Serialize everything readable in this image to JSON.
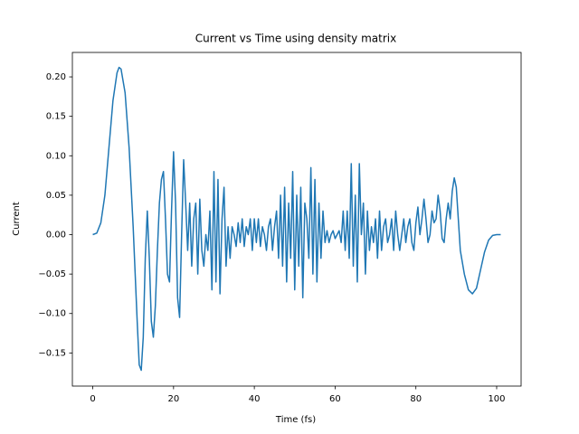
{
  "chart_data": {
    "type": "line",
    "title": "Current vs Time using density matrix",
    "x_label": "Time (fs)",
    "y_label": "Current",
    "x": [
      0,
      1,
      2,
      3,
      4,
      5,
      6,
      6.5,
      7,
      8,
      9,
      10,
      11,
      11.5,
      12,
      12.5,
      13,
      13.5,
      14,
      14.5,
      15,
      15.5,
      16,
      16.5,
      17,
      17.5,
      18,
      18.5,
      19,
      19.5,
      20,
      20.5,
      21,
      21.5,
      22,
      22.5,
      23,
      23.5,
      24,
      24.5,
      25,
      25.5,
      26,
      26.5,
      27,
      27.5,
      28,
      28.5,
      29,
      29.5,
      30,
      30.5,
      31,
      31.5,
      32,
      32.5,
      33,
      33.5,
      34,
      34.5,
      35,
      35.5,
      36,
      36.5,
      37,
      37.5,
      38,
      38.5,
      39,
      39.5,
      40,
      40.5,
      41,
      41.5,
      42,
      42.5,
      43,
      43.5,
      44,
      44.5,
      45,
      45.5,
      46,
      46.5,
      47,
      47.5,
      48,
      48.5,
      49,
      49.5,
      50,
      50.5,
      51,
      51.5,
      52,
      52.5,
      53,
      53.5,
      54,
      54.5,
      55,
      55.5,
      56,
      56.5,
      57,
      57.5,
      58,
      58.5,
      59,
      59.5,
      60,
      60.5,
      61,
      61.5,
      62,
      62.5,
      63,
      63.5,
      64,
      64.5,
      65,
      65.5,
      66,
      66.5,
      67,
      67.5,
      68,
      68.5,
      69,
      69.5,
      70,
      70.5,
      71,
      71.5,
      72,
      72.5,
      73,
      73.5,
      74,
      74.5,
      75,
      75.5,
      76,
      77,
      77.5,
      78,
      78.5,
      79,
      79.5,
      80,
      80.5,
      81,
      81.5,
      82,
      82.5,
      83,
      83.5,
      84,
      84.5,
      85,
      85.5,
      86,
      86.5,
      87,
      87.5,
      88,
      88.5,
      89,
      89.5,
      90,
      90.5,
      91,
      92,
      93,
      94,
      95,
      96,
      97,
      98,
      99,
      100,
      101
    ],
    "series": [
      {
        "name": "Current",
        "color": "#1f77b4",
        "values": [
          0,
          0.002,
          0.015,
          0.05,
          0.11,
          0.17,
          0.205,
          0.212,
          0.21,
          0.18,
          0.11,
          0.01,
          -0.11,
          -0.165,
          -0.172,
          -0.13,
          -0.03,
          0.03,
          -0.03,
          -0.11,
          -0.13,
          -0.09,
          -0.02,
          0.04,
          0.07,
          0.08,
          0.02,
          -0.05,
          -0.06,
          0.03,
          0.105,
          0.04,
          -0.08,
          -0.105,
          0.0,
          0.095,
          0.04,
          -0.02,
          0.04,
          -0.04,
          0.02,
          0.04,
          -0.05,
          0.045,
          -0.02,
          -0.04,
          0.0,
          -0.02,
          0.03,
          -0.07,
          0.08,
          -0.06,
          0.07,
          -0.075,
          0.02,
          0.06,
          -0.04,
          0.01,
          -0.03,
          0.01,
          0.0,
          -0.015,
          0.015,
          -0.01,
          0.02,
          -0.015,
          0.01,
          0.0,
          0.02,
          -0.02,
          0.02,
          -0.01,
          0.02,
          -0.015,
          0.01,
          0.0,
          -0.02,
          0.01,
          0.02,
          -0.02,
          0.01,
          0.03,
          -0.03,
          0.05,
          -0.04,
          0.06,
          -0.06,
          0.04,
          -0.03,
          0.08,
          -0.07,
          0.05,
          -0.04,
          0.06,
          -0.08,
          0.04,
          0.02,
          -0.03,
          0.085,
          -0.05,
          0.07,
          -0.06,
          0.04,
          -0.03,
          0.03,
          -0.01,
          0.005,
          -0.01,
          0.0,
          0.005,
          -0.005,
          0.0,
          0.005,
          -0.01,
          0.03,
          -0.02,
          0.03,
          -0.03,
          0.09,
          -0.04,
          0.05,
          -0.06,
          0.09,
          0.0,
          0.04,
          -0.05,
          0.03,
          -0.02,
          0.01,
          -0.01,
          0.02,
          -0.03,
          0.03,
          -0.02,
          0.01,
          0.02,
          -0.01,
          0.0,
          0.02,
          -0.02,
          0.03,
          0.0,
          -0.02,
          0.02,
          -0.01,
          0.01,
          0.02,
          -0.01,
          -0.02,
          0.015,
          0.035,
          0.0,
          0.02,
          0.045,
          0.02,
          -0.01,
          0.0,
          0.03,
          0.015,
          0.02,
          0.05,
          0.03,
          -0.005,
          -0.01,
          0.02,
          0.04,
          0.02,
          0.055,
          0.072,
          0.06,
          0.02,
          -0.02,
          -0.05,
          -0.07,
          -0.075,
          -0.068,
          -0.045,
          -0.022,
          -0.007,
          -0.001,
          0.0,
          0.0
        ]
      }
    ],
    "xlim": [
      -5.05,
      106.05
    ],
    "xticks": [
      0,
      20,
      40,
      60,
      80,
      100
    ],
    "ylim": [
      -0.192,
      0.231
    ],
    "yticks": [
      {
        "value": -0.15,
        "label": "−0.15"
      },
      {
        "value": -0.1,
        "label": "−0.10"
      },
      {
        "value": -0.05,
        "label": "−0.05"
      },
      {
        "value": 0,
        "label": "0.00"
      },
      {
        "value": 0.05,
        "label": "0.05"
      },
      {
        "value": 0.1,
        "label": "0.10"
      },
      {
        "value": 0.15,
        "label": "0.15"
      },
      {
        "value": 0.2,
        "label": "0.20"
      }
    ],
    "grid": false
  }
}
